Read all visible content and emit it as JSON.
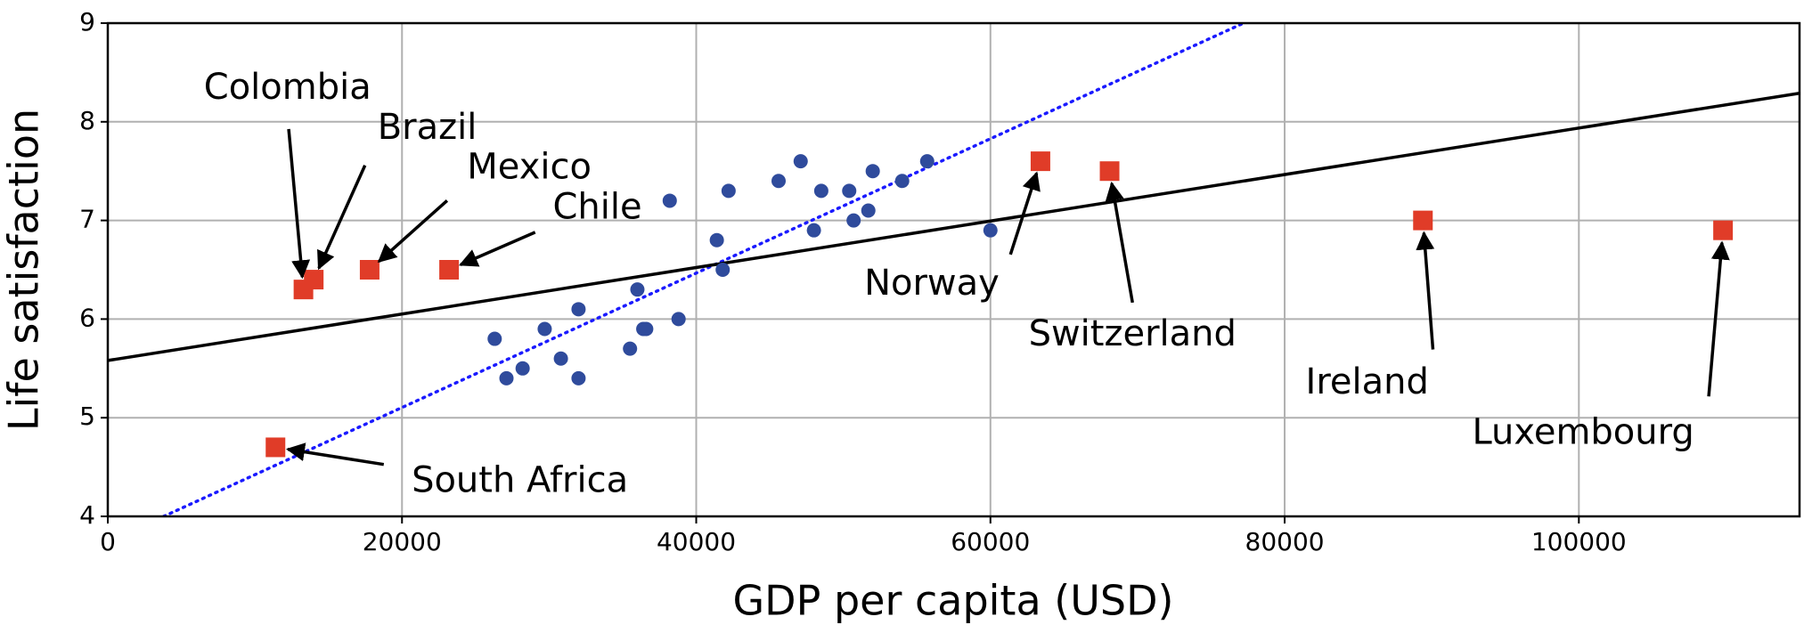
{
  "chart_data": {
    "type": "scatter",
    "xlabel": "GDP per capita (USD)",
    "ylabel": "Life satisfaction",
    "xlim": [
      0,
      115000
    ],
    "ylim": [
      4,
      9
    ],
    "xticks": [
      0,
      20000,
      40000,
      60000,
      80000,
      100000
    ],
    "yticks": [
      4,
      5,
      6,
      7,
      8,
      9
    ],
    "grid": true,
    "series": [
      {
        "color": "#2f4b9c",
        "marker": "circle",
        "x": [
          26300,
          27100,
          28200,
          29700,
          30800,
          32000,
          32000,
          35500,
          36000,
          36400,
          36600,
          38200,
          38800,
          41400,
          41800,
          42200,
          45600,
          47100,
          48000,
          48500,
          50400,
          50700,
          51700,
          52000,
          54000,
          55700,
          60000
        ],
        "values": [
          5.8,
          5.4,
          5.5,
          5.9,
          5.6,
          6.1,
          5.4,
          5.7,
          6.3,
          5.9,
          5.9,
          7.2,
          6.0,
          6.8,
          6.5,
          7.3,
          7.4,
          7.6,
          6.9,
          7.3,
          7.3,
          7.0,
          7.1,
          7.5,
          7.4,
          7.6,
          6.9
        ]
      },
      {
        "color": "#e03c28",
        "marker": "square",
        "labels": [
          "South Africa",
          "Colombia",
          "Brazil",
          "Mexico",
          "Chile",
          "Norway",
          "Switzerland",
          "Ireland",
          "Luxembourg"
        ],
        "x": [
          11400,
          13300,
          14000,
          17800,
          23200,
          63400,
          68100,
          89400,
          109800
        ],
        "values": [
          4.7,
          6.3,
          6.4,
          6.5,
          6.5,
          7.6,
          7.5,
          7.0,
          6.9
        ]
      }
    ],
    "lines": [
      {
        "color": "#1a1aff",
        "style": "dotted",
        "x": [
          3800,
          77200
        ],
        "values": [
          4.0,
          9.0
        ]
      },
      {
        "color": "#000000",
        "style": "solid",
        "x": [
          0,
          115000
        ],
        "values": [
          5.58,
          8.29
        ]
      }
    ]
  }
}
